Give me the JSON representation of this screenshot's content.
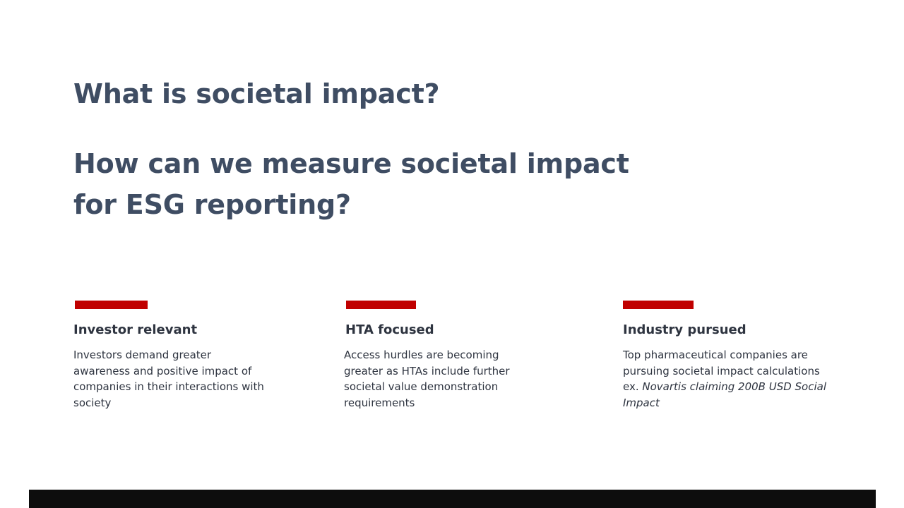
{
  "colors": {
    "title": "#3f4d63",
    "text": "#2e3440",
    "accent": "#c00000",
    "footer": "#0d0d0d",
    "background": "#ffffff"
  },
  "headline": {
    "question_1": "What is societal impact?",
    "question_2": "How can we measure societal impact for ESG reporting?"
  },
  "pillars": [
    {
      "title": "Investor relevant",
      "body": "Investors demand greater awareness and positive impact of companies in their interactions with society"
    },
    {
      "title": "HTA focused",
      "body": "Access hurdles are becoming greater as HTAs include further societal value demonstration requirements"
    },
    {
      "title": "Industry pursued",
      "body": "Top pharmaceutical companies are pursuing societal impact calculations",
      "body_example_prefix": "ex.",
      "body_example_italic": "Novartis claiming 200B USD Social Impact"
    }
  ]
}
